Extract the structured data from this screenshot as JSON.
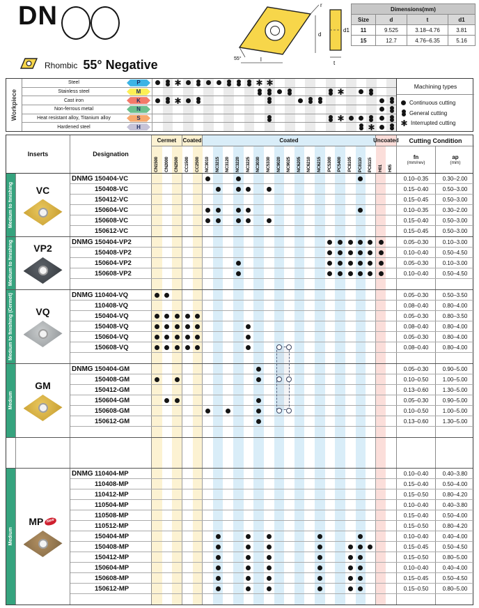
{
  "header": {
    "series_code": "DN",
    "shape_label": "Rhombic",
    "angle_label": "55° Negative",
    "diagram": {
      "r": "r",
      "d": "d",
      "d1": "d1",
      "t": "t",
      "l": "l",
      "angle": "55°"
    },
    "dimensions_table": {
      "title": "Dimensions(mm)",
      "columns": [
        "Size",
        "d",
        "t",
        "d1"
      ],
      "rows": [
        [
          "11",
          "9.525",
          "3.18–4.76",
          "3.81"
        ],
        [
          "15",
          "12.7",
          "4.76–6.35",
          "5.16"
        ]
      ]
    }
  },
  "workpiece": {
    "label": "Workpiece",
    "rows": [
      {
        "material": "Steel",
        "code": "P",
        "color": "#3cb4e5",
        "symbols": {
          "CN1500": "c",
          "CN2000": "g",
          "CN2500": "i",
          "CC1500": "c",
          "CC2500": "g",
          "NC3010": "c",
          "NC3215": "c",
          "NC3120": "g",
          "NC3220": "g",
          "NC3225": "g",
          "NC3030": "i",
          "NC5330": "i"
        }
      },
      {
        "material": "Stainless steel",
        "code": "M",
        "color": "#fdef55",
        "symbols": {
          "NC3030": "g",
          "NC5330": "g",
          "NC9020": "c",
          "NC9025": "g",
          "PC5300": "g",
          "PC5400": "i",
          "PC8110": "c",
          "PC8115": "g"
        }
      },
      {
        "material": "Cast iron",
        "code": "K",
        "color": "#f3796a",
        "symbols": {
          "CN1500": "c",
          "CN2000": "g",
          "CN2500": "i",
          "CC1500": "c",
          "CC2500": "g",
          "NC5330": "g",
          "NC6205": "c",
          "NC6210": "g",
          "NC6215": "g",
          "H01": "c",
          "H05": "g"
        }
      },
      {
        "material": "Non-ferrous metal",
        "code": "N",
        "color": "#6cc08e",
        "symbols": {
          "H01": "c",
          "H05": "g"
        }
      },
      {
        "material": "Heat resistant alloy, Titanium alloy",
        "code": "S",
        "color": "#f8a96d",
        "symbols": {
          "NC5330": "g",
          "PC5300": "g",
          "PC5400": "i",
          "PC8105": "c",
          "PC8110": "c",
          "PC8115": "g",
          "H01": "c",
          "H05": "g"
        }
      },
      {
        "material": "Hardened steel",
        "code": "H",
        "color": "#c6c3d8",
        "symbols": {
          "PC8110": "g",
          "PC8115": "i",
          "H01": "c",
          "H05": "g"
        }
      }
    ],
    "legend": {
      "title": "Machining types",
      "items": [
        {
          "symbol": "c",
          "label": "Continuous cutting"
        },
        {
          "symbol": "g",
          "label": "General cutting"
        },
        {
          "symbol": "i",
          "label": "Interrupted cutting"
        }
      ]
    }
  },
  "table": {
    "inserts_header": "Inserts",
    "designation_header": "Designation",
    "cutting_condition_header": "Cutting Condition",
    "fn_label": "fn",
    "fn_unit": "(mm/rev)",
    "ap_label": "ap",
    "ap_unit": "(mm)",
    "group_headers": [
      {
        "label": "Cermet",
        "cols": 3,
        "tint": "y"
      },
      {
        "label": "Coated",
        "cols": 2,
        "tint": "y"
      },
      {
        "label": "Coated",
        "cols": 17,
        "tint": "b"
      },
      {
        "label": "Uncoated",
        "cols": 2,
        "tint": "p"
      }
    ],
    "columns": [
      {
        "id": "CN1500",
        "group": "cermet"
      },
      {
        "id": "CN2000",
        "group": "cermet"
      },
      {
        "id": "CN2500",
        "group": "cermet"
      },
      {
        "id": "CC1500",
        "group": "cermet"
      },
      {
        "id": "CC2500",
        "group": "cermet"
      },
      {
        "id": "NC3010",
        "group": "coated"
      },
      {
        "id": "NC3215",
        "group": "coated"
      },
      {
        "id": "NC3120",
        "group": "coated"
      },
      {
        "id": "NC3220",
        "group": "coated"
      },
      {
        "id": "NC3225",
        "group": "coated"
      },
      {
        "id": "NC3030",
        "group": "coated"
      },
      {
        "id": "NC5330",
        "group": "coated"
      },
      {
        "id": "NC9020",
        "group": "coated"
      },
      {
        "id": "NC9025",
        "group": "coated"
      },
      {
        "id": "NC6205",
        "group": "coated"
      },
      {
        "id": "NC6210",
        "group": "coated"
      },
      {
        "id": "NC6215",
        "group": "coated"
      },
      {
        "id": "PC5300",
        "group": "coated"
      },
      {
        "id": "PC5400",
        "group": "coated"
      },
      {
        "id": "PC8105",
        "group": "coated"
      },
      {
        "id": "PC8110",
        "group": "coated"
      },
      {
        "id": "PC8115",
        "group": "coated"
      },
      {
        "id": "H01",
        "group": "uncoated"
      },
      {
        "id": "H05",
        "group": "uncoated"
      }
    ],
    "sections": [
      {
        "name": "VC",
        "sidebar": "Medium to finishing",
        "insert_style": "gold",
        "gap_row": false,
        "rows": [
          {
            "prefix": "DNMG",
            "code": "150404-VC",
            "dots": [
              "NC3010",
              "NC3220",
              "PC8110"
            ],
            "fn": "0.10–0.35",
            "ap": "0.30–2.00"
          },
          {
            "prefix": "",
            "code": "150408-VC",
            "dots": [
              "NC3215",
              "NC3220",
              "NC3225",
              "NC5330"
            ],
            "fn": "0.15–0.40",
            "ap": "0.50–3.00"
          },
          {
            "prefix": "",
            "code": "150412-VC",
            "dots": [],
            "fn": "0.15–0.45",
            "ap": "0.50–3.00"
          },
          {
            "prefix": "",
            "code": "150604-VC",
            "dots": [
              "NC3010",
              "NC3215",
              "NC3220",
              "NC3225",
              "PC8110"
            ],
            "fn": "0.10–0.35",
            "ap": "0.30–2.00"
          },
          {
            "prefix": "",
            "code": "150608-VC",
            "dots": [
              "NC3010",
              "NC3215",
              "NC3220",
              "NC3225",
              "NC5330"
            ],
            "fn": "0.15–0.40",
            "ap": "0.50–3.00"
          },
          {
            "prefix": "",
            "code": "150612-VC",
            "dots": [],
            "fn": "0.15–0.45",
            "ap": "0.50–3.00"
          }
        ]
      },
      {
        "name": "VP2",
        "sidebar": "Medium to finishing",
        "insert_style": "dark",
        "gap_row": true,
        "rows": [
          {
            "prefix": "DNMG",
            "code": "150404-VP2",
            "dots": [
              "PC5300",
              "PC5400",
              "PC8105",
              "PC8110",
              "PC8115",
              "H01"
            ],
            "fn": "0.05–0.30",
            "ap": "0.10–3.00"
          },
          {
            "prefix": "",
            "code": "150408-VP2",
            "dots": [
              "PC5300",
              "PC5400",
              "PC8105",
              "PC8110",
              "PC8115",
              "H01"
            ],
            "fn": "0.10–0.40",
            "ap": "0.50–4.50"
          },
          {
            "prefix": "",
            "code": "150604-VP2",
            "dots": [
              "NC3220",
              "PC5300",
              "PC5400",
              "PC8105",
              "PC8110",
              "PC8115",
              "H01"
            ],
            "fn": "0.05–0.30",
            "ap": "0.10–3.00"
          },
          {
            "prefix": "",
            "code": "150608-VP2",
            "dots": [
              "NC3220",
              "PC5300",
              "PC5400",
              "PC8105",
              "PC8110",
              "PC8115",
              "H01"
            ],
            "fn": "0.10–0.40",
            "ap": "0.50–4.50"
          }
        ]
      },
      {
        "name": "VQ",
        "sidebar": "Medium to finishing (Cermet)",
        "insert_style": "silver",
        "gap_row": true,
        "rows": [
          {
            "prefix": "DNMG",
            "code": "110404-VQ",
            "dots": [
              "CN1500",
              "CN2000"
            ],
            "fn": "0.05–0.30",
            "ap": "0.50–3.50"
          },
          {
            "prefix": "",
            "code": "110408-VQ",
            "dots": [],
            "fn": "0.08–0.40",
            "ap": "0.80–4.00"
          },
          {
            "prefix": "",
            "code": "150404-VQ",
            "dots": [
              "CN1500",
              "CN2000",
              "CN2500",
              "CC1500",
              "CC2500"
            ],
            "fn": "0.05–0.30",
            "ap": "0.80–3.50"
          },
          {
            "prefix": "",
            "code": "150408-VQ",
            "dots": [
              "CN1500",
              "CN2000",
              "CN2500",
              "CC1500",
              "CC2500",
              "NC3225"
            ],
            "fn": "0.08–0.40",
            "ap": "0.80–4.00"
          },
          {
            "prefix": "",
            "code": "150604-VQ",
            "dots": [
              "CN1500",
              "CN2000",
              "CN2500",
              "CC1500",
              "CC2500",
              "NC3225"
            ],
            "fn": "0.05–0.30",
            "ap": "0.80–4.00"
          },
          {
            "prefix": "",
            "code": "150608-VQ",
            "dots": [
              "CN1500",
              "CN2000",
              "CN2500",
              "CC1500",
              "CC2500",
              "NC3225"
            ],
            "hollow": [
              "NC9020",
              "NC9025"
            ],
            "fn": "0.08–0.40",
            "ap": "0.80–4.00"
          }
        ]
      },
      {
        "name": "GM",
        "sidebar": "Medium",
        "insert_style": "gold",
        "gap_row": true,
        "rows": [
          {
            "prefix": "DNMG",
            "code": "150404-GM",
            "dots": [
              "NC3030"
            ],
            "fn": "0.05–0.30",
            "ap": "0.90–5.00"
          },
          {
            "prefix": "",
            "code": "150408-GM",
            "dots": [
              "CN1500",
              "CN2500",
              "NC3030"
            ],
            "hollow": [
              "NC9020",
              "NC9025"
            ],
            "fn": "0.10–0.50",
            "ap": "1.00–5.00"
          },
          {
            "prefix": "",
            "code": "150412-GM",
            "dots": [],
            "fn": "0.13–0.60",
            "ap": "1.30–5.00"
          },
          {
            "prefix": "",
            "code": "150604-GM",
            "dots": [
              "CN2000",
              "CN2500",
              "NC3030"
            ],
            "fn": "0.05–0.30",
            "ap": "0.90–5.00"
          },
          {
            "prefix": "",
            "code": "150608-GM",
            "dots": [
              "NC3010",
              "NC3120",
              "NC3030"
            ],
            "hollow": [
              "NC9020",
              "NC9025"
            ],
            "fn": "0.10–0.50",
            "ap": "1.00–5.00"
          },
          {
            "prefix": "",
            "code": "150612-GM",
            "dots": [
              "NC3030"
            ],
            "fn": "0.13–0.60",
            "ap": "1.30–5.00"
          }
        ]
      },
      {
        "spacer": true
      },
      {
        "name": "MP",
        "sidebar": "Medium",
        "insert_style": "bronze",
        "badge": "New",
        "gap_row": true,
        "rows": [
          {
            "prefix": "DNMG",
            "code": "110404-MP",
            "dots": [],
            "fn": "0.10–0.40",
            "ap": "0.40–3.80"
          },
          {
            "prefix": "",
            "code": "110408-MP",
            "dots": [],
            "fn": "0.15–0.40",
            "ap": "0.50–4.00"
          },
          {
            "prefix": "",
            "code": "110412-MP",
            "dots": [],
            "fn": "0.15–0.50",
            "ap": "0.80–4.20"
          },
          {
            "prefix": "",
            "code": "110504-MP",
            "dots": [],
            "fn": "0.10–0.40",
            "ap": "0.40–3.80"
          },
          {
            "prefix": "",
            "code": "110508-MP",
            "dots": [],
            "fn": "0.15–0.40",
            "ap": "0.50–4.00"
          },
          {
            "prefix": "",
            "code": "110512-MP",
            "dots": [],
            "fn": "0.15–0.50",
            "ap": "0.80–4.20"
          },
          {
            "prefix": "",
            "code": "150404-MP",
            "dots": [
              "NC3215",
              "NC3225",
              "NC5330",
              "NC6215",
              "PC8110"
            ],
            "fn": "0.10–0.40",
            "ap": "0.40–4.00"
          },
          {
            "prefix": "",
            "code": "150408-MP",
            "dots": [
              "NC3215",
              "NC3225",
              "NC5330",
              "NC6215",
              "PC8105",
              "PC8110",
              "PC8115"
            ],
            "fn": "0.15–0.45",
            "ap": "0.50–4.50"
          },
          {
            "prefix": "",
            "code": "150412-MP",
            "dots": [
              "NC3215",
              "NC3225",
              "NC5330",
              "NC6215",
              "PC8105",
              "PC8110"
            ],
            "fn": "0.15–0.50",
            "ap": "0.80–5.00"
          },
          {
            "prefix": "",
            "code": "150604-MP",
            "dots": [
              "NC3215",
              "NC3225",
              "NC5330",
              "NC6215",
              "PC8105",
              "PC8110"
            ],
            "fn": "0.10–0.40",
            "ap": "0.40–4.00"
          },
          {
            "prefix": "",
            "code": "150608-MP",
            "dots": [
              "NC3215",
              "NC3225",
              "NC5330",
              "NC6215",
              "PC8105",
              "PC8110"
            ],
            "fn": "0.15–0.45",
            "ap": "0.50–4.50"
          },
          {
            "prefix": "",
            "code": "150612-MP",
            "dots": [
              "NC3215",
              "NC3225",
              "NC5330",
              "NC6215",
              "PC8105",
              "PC8110"
            ],
            "fn": "0.15–0.50",
            "ap": "0.80–5.00"
          }
        ]
      }
    ]
  }
}
